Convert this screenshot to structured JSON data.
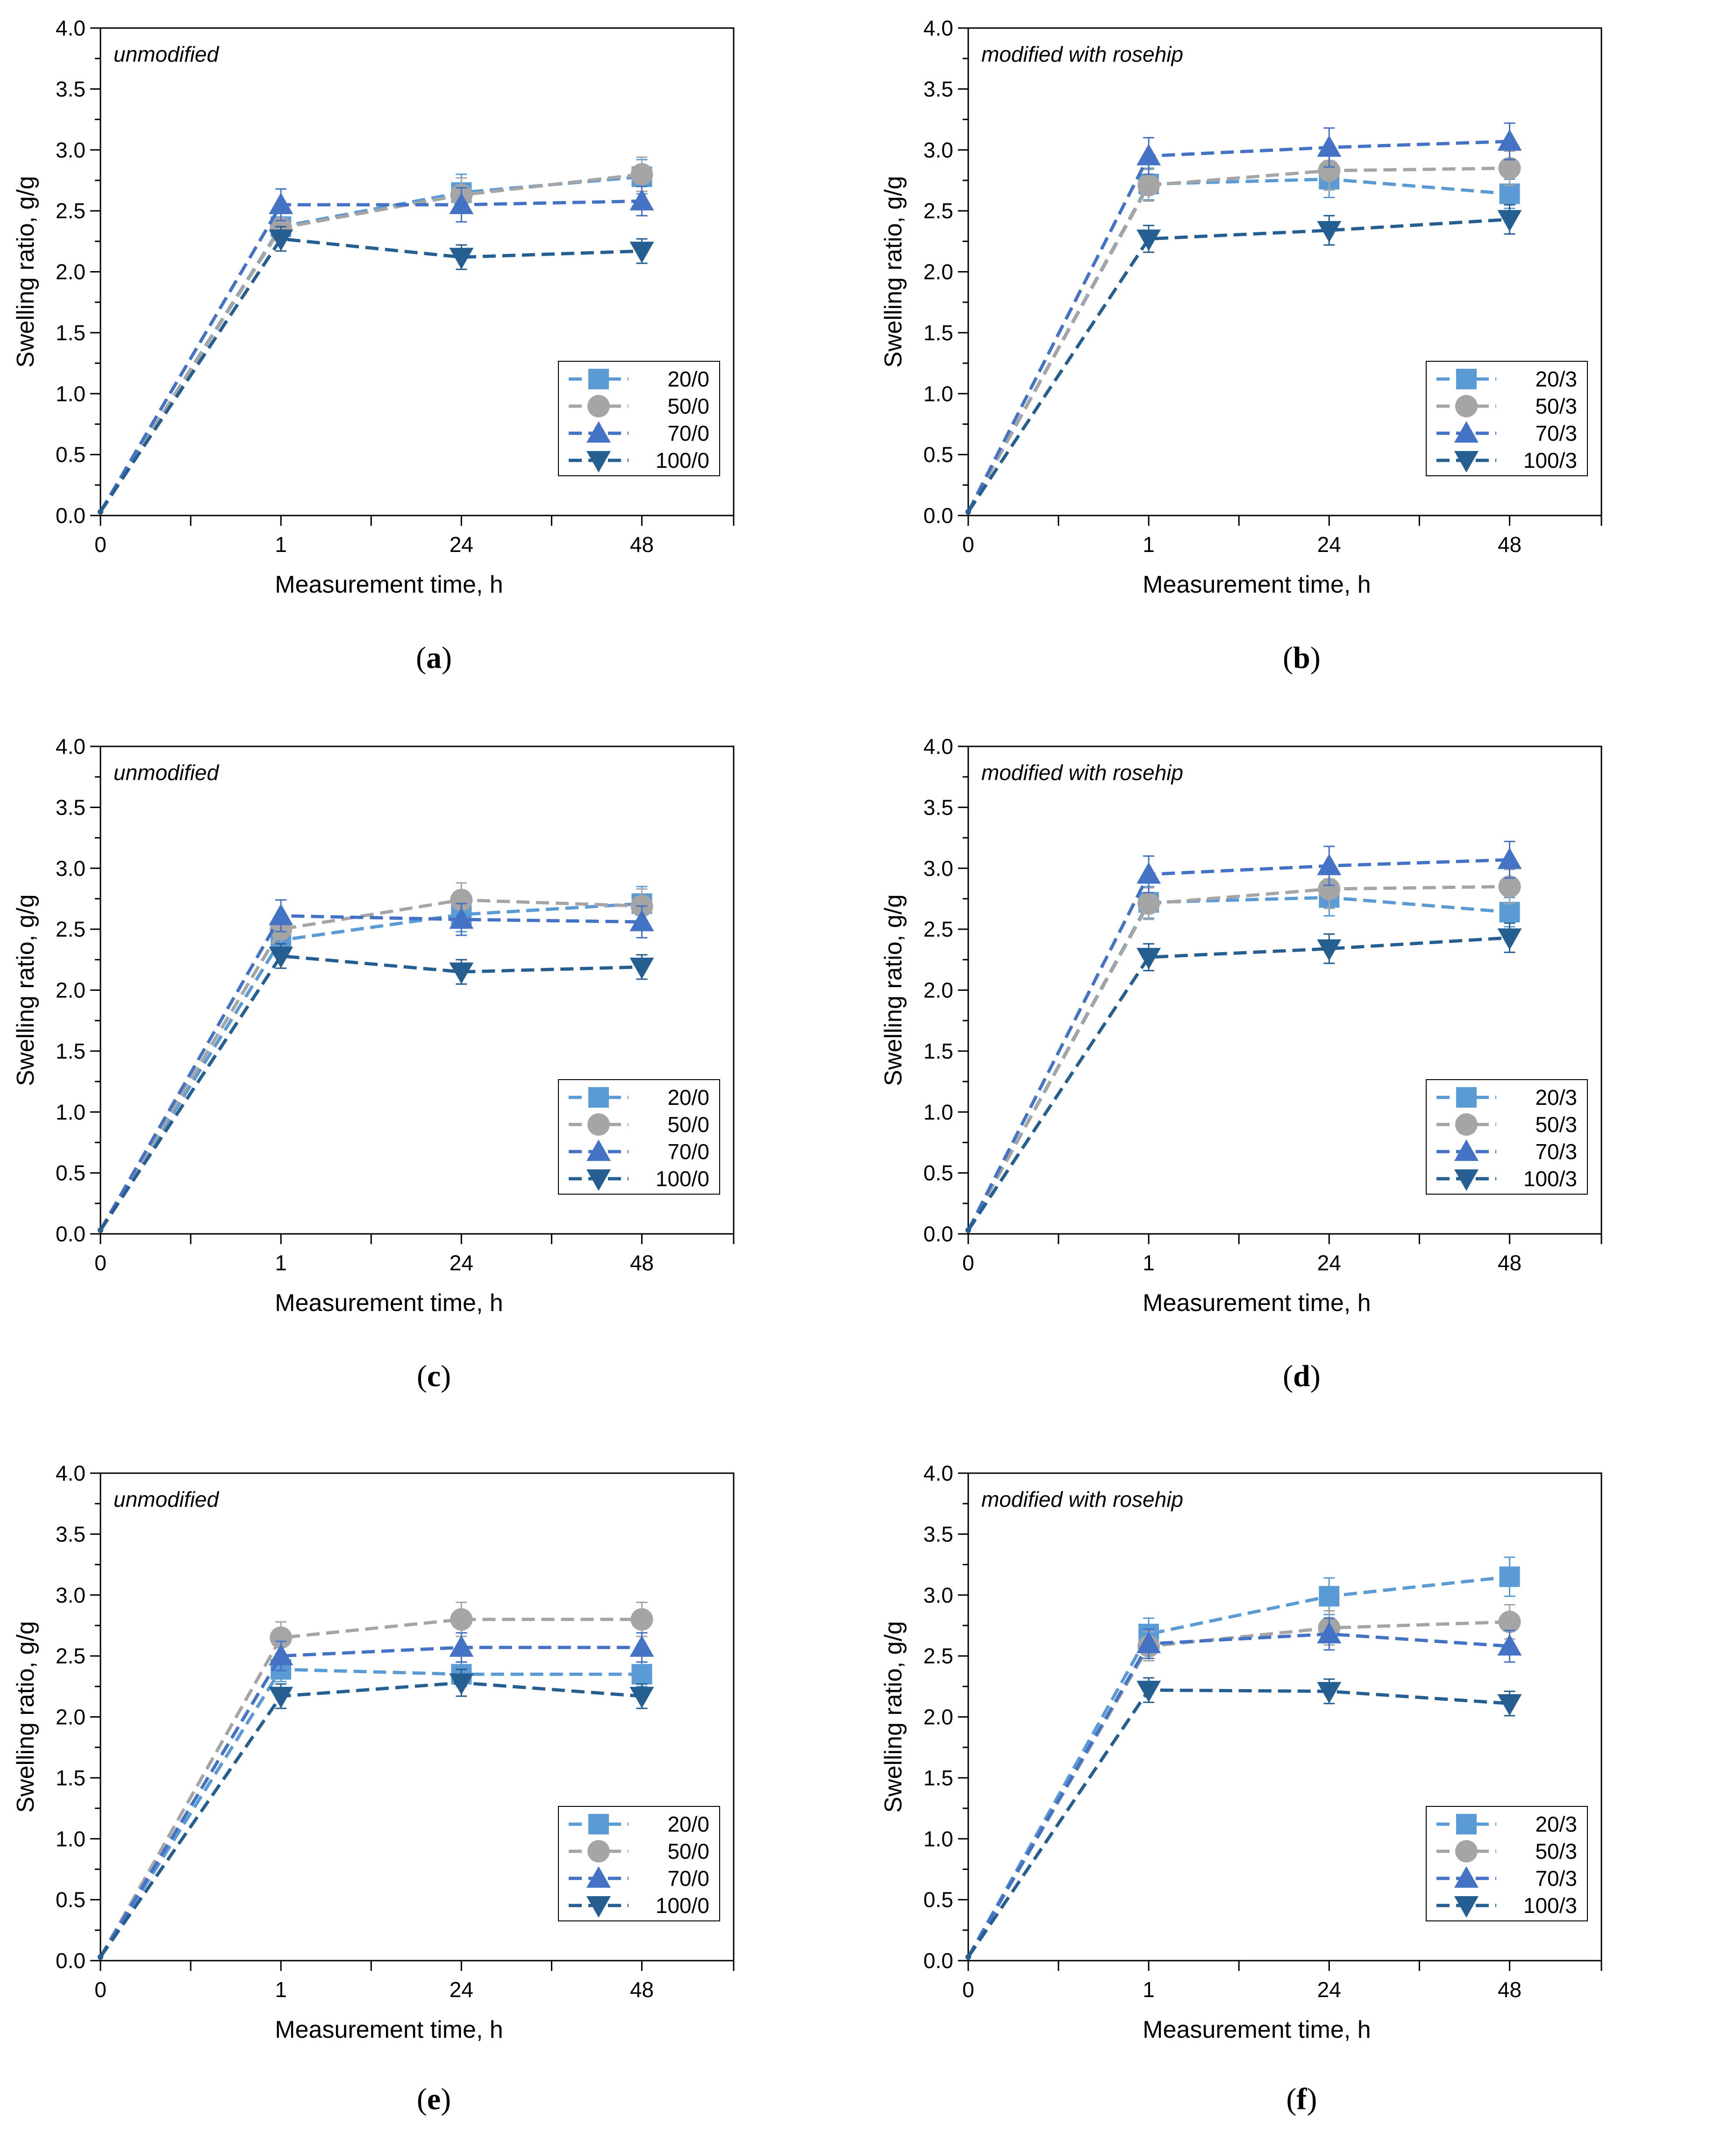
{
  "figure": {
    "colors": {
      "s20": "#5b9bd5",
      "s50": "#a5a5a5",
      "s70": "#4472c4",
      "s100": "#255e91",
      "axis": "#000000"
    }
  },
  "chart_data": [
    {
      "id": "a",
      "caption_letter": "a",
      "type": "line",
      "annotation": "unmodified",
      "xlabel": "Measurement time, h",
      "ylabel": "Swelling ratio, g/g",
      "categories": [
        "0",
        "1",
        "24",
        "48"
      ],
      "ylim": [
        0,
        4
      ],
      "yticks": [
        "0.0",
        "0.5",
        "1.0",
        "1.5",
        "2.0",
        "2.5",
        "3.0",
        "3.5",
        "4.0"
      ],
      "legend_position": "bottom-right",
      "grid": false,
      "series": [
        {
          "name": "20/0",
          "marker": "square",
          "color": "#5b9bd5",
          "values": [
            0.03,
            2.37,
            2.65,
            2.78
          ],
          "errors": [
            0,
            0.08,
            0.15,
            0.14
          ]
        },
        {
          "name": "50/0",
          "marker": "circle",
          "color": "#a5a5a5",
          "values": [
            0.03,
            2.36,
            2.63,
            2.8
          ],
          "errors": [
            0,
            0.07,
            0.14,
            0.14
          ]
        },
        {
          "name": "70/0",
          "marker": "triangle-up",
          "color": "#4472c4",
          "values": [
            0.03,
            2.55,
            2.55,
            2.58
          ],
          "errors": [
            0,
            0.13,
            0.14,
            0.12
          ]
        },
        {
          "name": "100/0",
          "marker": "triangle-down",
          "color": "#255e91",
          "values": [
            0.03,
            2.27,
            2.12,
            2.17
          ],
          "errors": [
            0,
            0.1,
            0.1,
            0.1
          ]
        }
      ]
    },
    {
      "id": "b",
      "caption_letter": "b",
      "type": "line",
      "annotation": "modified with rosehip",
      "xlabel": "Measurement time, h",
      "ylabel": "Swelling ratio, g/g",
      "categories": [
        "0",
        "1",
        "24",
        "48"
      ],
      "ylim": [
        0,
        4
      ],
      "yticks": [
        "0.0",
        "0.5",
        "1.0",
        "1.5",
        "2.0",
        "2.5",
        "3.0",
        "3.5",
        "4.0"
      ],
      "legend_position": "bottom-right",
      "grid": false,
      "series": [
        {
          "name": "20/3",
          "marker": "square",
          "color": "#5b9bd5",
          "values": [
            0.03,
            2.72,
            2.76,
            2.64
          ],
          "errors": [
            0,
            0.13,
            0.15,
            0.12
          ]
        },
        {
          "name": "50/3",
          "marker": "circle",
          "color": "#a5a5a5",
          "values": [
            0.03,
            2.71,
            2.83,
            2.85
          ],
          "errors": [
            0,
            0.13,
            0.16,
            0.14
          ]
        },
        {
          "name": "70/3",
          "marker": "triangle-up",
          "color": "#4472c4",
          "values": [
            0.03,
            2.95,
            3.02,
            3.07
          ],
          "errors": [
            0,
            0.15,
            0.16,
            0.15
          ]
        },
        {
          "name": "100/3",
          "marker": "triangle-down",
          "color": "#255e91",
          "values": [
            0.03,
            2.27,
            2.34,
            2.43
          ],
          "errors": [
            0,
            0.11,
            0.12,
            0.12
          ]
        }
      ]
    },
    {
      "id": "c",
      "caption_letter": "c",
      "type": "line",
      "annotation": "unmodified",
      "xlabel": "Measurement time, h",
      "ylabel": "Swelling ratio, g/g",
      "categories": [
        "0",
        "1",
        "24",
        "48"
      ],
      "ylim": [
        0,
        4
      ],
      "yticks": [
        "0.0",
        "0.5",
        "1.0",
        "1.5",
        "2.0",
        "2.5",
        "3.0",
        "3.5",
        "4.0"
      ],
      "legend_position": "bottom-right",
      "grid": false,
      "series": [
        {
          "name": "20/0",
          "marker": "square",
          "color": "#5b9bd5",
          "values": [
            0.03,
            2.41,
            2.62,
            2.71
          ],
          "errors": [
            0,
            0.12,
            0.14,
            0.14
          ]
        },
        {
          "name": "50/0",
          "marker": "circle",
          "color": "#a5a5a5",
          "values": [
            0.03,
            2.5,
            2.74,
            2.69
          ],
          "errors": [
            0,
            0.12,
            0.14,
            0.14
          ]
        },
        {
          "name": "70/0",
          "marker": "triangle-up",
          "color": "#4472c4",
          "values": [
            0.03,
            2.61,
            2.58,
            2.56
          ],
          "errors": [
            0,
            0.13,
            0.13,
            0.13
          ]
        },
        {
          "name": "100/0",
          "marker": "triangle-down",
          "color": "#255e91",
          "values": [
            0.03,
            2.28,
            2.15,
            2.19
          ],
          "errors": [
            0,
            0.1,
            0.1,
            0.1
          ]
        }
      ]
    },
    {
      "id": "d",
      "caption_letter": "d",
      "type": "line",
      "annotation": "modified with rosehip",
      "xlabel": "Measurement time, h",
      "ylabel": "Swelling ratio, g/g",
      "categories": [
        "0",
        "1",
        "24",
        "48"
      ],
      "ylim": [
        0,
        4
      ],
      "yticks": [
        "0.0",
        "0.5",
        "1.0",
        "1.5",
        "2.0",
        "2.5",
        "3.0",
        "3.5",
        "4.0"
      ],
      "legend_position": "bottom-right",
      "grid": false,
      "series": [
        {
          "name": "20/3",
          "marker": "square",
          "color": "#5b9bd5",
          "values": [
            0.03,
            2.72,
            2.76,
            2.64
          ],
          "errors": [
            0,
            0.13,
            0.15,
            0.12
          ]
        },
        {
          "name": "50/3",
          "marker": "circle",
          "color": "#a5a5a5",
          "values": [
            0.03,
            2.71,
            2.83,
            2.85
          ],
          "errors": [
            0,
            0.13,
            0.16,
            0.14
          ]
        },
        {
          "name": "70/3",
          "marker": "triangle-up",
          "color": "#4472c4",
          "values": [
            0.03,
            2.95,
            3.02,
            3.07
          ],
          "errors": [
            0,
            0.15,
            0.16,
            0.15
          ]
        },
        {
          "name": "100/3",
          "marker": "triangle-down",
          "color": "#255e91",
          "values": [
            0.03,
            2.27,
            2.34,
            2.43
          ],
          "errors": [
            0,
            0.11,
            0.12,
            0.12
          ]
        }
      ]
    },
    {
      "id": "e",
      "caption_letter": "e",
      "type": "line",
      "annotation": "unmodified",
      "xlabel": "Measurement time, h",
      "ylabel": "Swelling ratio, g/g",
      "categories": [
        "0",
        "1",
        "24",
        "48"
      ],
      "ylim": [
        0,
        4
      ],
      "yticks": [
        "0.0",
        "0.5",
        "1.0",
        "1.5",
        "2.0",
        "2.5",
        "3.0",
        "3.5",
        "4.0"
      ],
      "legend_position": "bottom-right",
      "grid": false,
      "series": [
        {
          "name": "20/0",
          "marker": "square",
          "color": "#5b9bd5",
          "values": [
            0.03,
            2.39,
            2.35,
            2.35
          ],
          "errors": [
            0,
            0.1,
            0.1,
            0.1
          ]
        },
        {
          "name": "50/0",
          "marker": "circle",
          "color": "#a5a5a5",
          "values": [
            0.03,
            2.65,
            2.8,
            2.8
          ],
          "errors": [
            0,
            0.13,
            0.14,
            0.14
          ]
        },
        {
          "name": "70/0",
          "marker": "triangle-up",
          "color": "#4472c4",
          "values": [
            0.03,
            2.5,
            2.57,
            2.57
          ],
          "errors": [
            0,
            0.12,
            0.12,
            0.12
          ]
        },
        {
          "name": "100/0",
          "marker": "triangle-down",
          "color": "#255e91",
          "values": [
            0.03,
            2.17,
            2.28,
            2.17
          ],
          "errors": [
            0,
            0.1,
            0.11,
            0.1
          ]
        }
      ]
    },
    {
      "id": "f",
      "caption_letter": "f",
      "type": "line",
      "annotation": "modified with rosehip",
      "xlabel": "Measurement time, h",
      "ylabel": "Swelling ratio, g/g",
      "categories": [
        "0",
        "1",
        "24",
        "48"
      ],
      "ylim": [
        0,
        4
      ],
      "yticks": [
        "0.0",
        "0.5",
        "1.0",
        "1.5",
        "2.0",
        "2.5",
        "3.0",
        "3.5",
        "4.0"
      ],
      "legend_position": "bottom-right",
      "grid": false,
      "series": [
        {
          "name": "20/3",
          "marker": "square",
          "color": "#5b9bd5",
          "values": [
            0.03,
            2.68,
            2.99,
            3.15
          ],
          "errors": [
            0,
            0.13,
            0.15,
            0.16
          ]
        },
        {
          "name": "50/3",
          "marker": "circle",
          "color": "#a5a5a5",
          "values": [
            0.03,
            2.58,
            2.73,
            2.78
          ],
          "errors": [
            0,
            0.12,
            0.14,
            0.14
          ]
        },
        {
          "name": "70/3",
          "marker": "triangle-up",
          "color": "#4472c4",
          "values": [
            0.03,
            2.6,
            2.68,
            2.58
          ],
          "errors": [
            0,
            0.12,
            0.13,
            0.13
          ]
        },
        {
          "name": "100/3",
          "marker": "triangle-down",
          "color": "#255e91",
          "values": [
            0.03,
            2.22,
            2.21,
            2.11
          ],
          "errors": [
            0,
            0.1,
            0.1,
            0.1
          ]
        }
      ]
    }
  ]
}
